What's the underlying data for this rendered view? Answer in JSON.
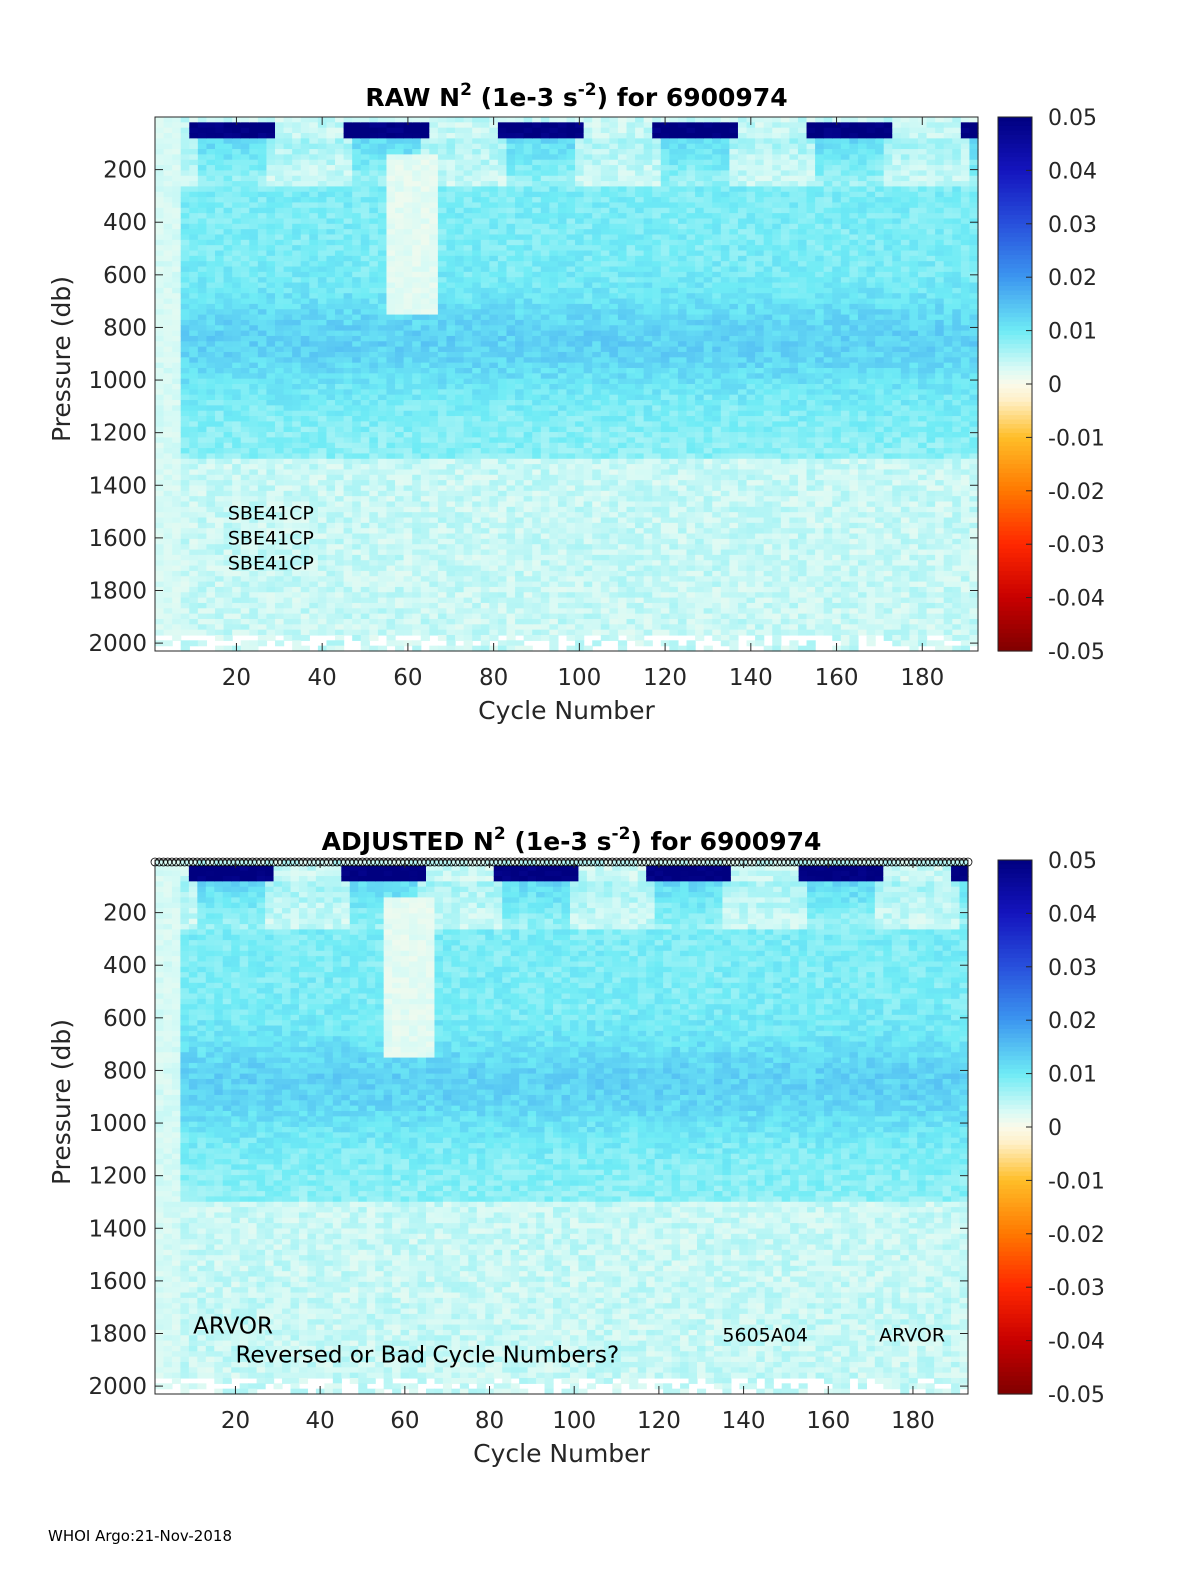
{
  "footer": "WHOI Argo:21-Nov-2018",
  "chart_data": [
    {
      "type": "heatmap",
      "title_main": "RAW N",
      "title_sup": "2",
      "title_unit_pre": " (1e-3 s",
      "title_unit_sup": "-2",
      "title_post": ") for 6900974",
      "xlabel": "Cycle Number",
      "ylabel": "Pressure (db)",
      "xlim": [
        1,
        193
      ],
      "ylim": [
        0,
        2030
      ],
      "xticks": [
        20,
        40,
        60,
        80,
        100,
        120,
        140,
        160,
        180
      ],
      "yticks": [
        200,
        400,
        600,
        800,
        1000,
        1200,
        1400,
        1600,
        1800,
        2000
      ],
      "colorbar": {
        "range": [
          -0.05,
          0.05
        ],
        "ticks": [
          "0.05",
          "0.04",
          "0.03",
          "0.02",
          "0.01",
          "0",
          "-0.01",
          "-0.02",
          "-0.03",
          "-0.04",
          "-0.05"
        ]
      },
      "annotations": [
        {
          "text": "SBE41CP",
          "x": 18,
          "y": 1530
        },
        {
          "text": "SBE41CP",
          "x": 18,
          "y": 1625
        },
        {
          "text": "SBE41CP",
          "x": 18,
          "y": 1720
        }
      ],
      "flag_markers": false
    },
    {
      "type": "heatmap",
      "title_main": "ADJUSTED N",
      "title_sup": "2",
      "title_unit_pre": " (1e-3 s",
      "title_unit_sup": "-2",
      "title_post": ") for 6900974",
      "xlabel": "Cycle Number",
      "ylabel": "Pressure (db)",
      "xlim": [
        1,
        193
      ],
      "ylim": [
        0,
        2030
      ],
      "xticks": [
        20,
        40,
        60,
        80,
        100,
        120,
        140,
        160,
        180
      ],
      "yticks": [
        200,
        400,
        600,
        800,
        1000,
        1200,
        1400,
        1600,
        1800,
        2000
      ],
      "colorbar": {
        "range": [
          -0.05,
          0.05
        ],
        "ticks": [
          "0.05",
          "0.04",
          "0.03",
          "0.02",
          "0.01",
          "0",
          "-0.01",
          "-0.02",
          "-0.03",
          "-0.04",
          "-0.05"
        ]
      },
      "annotations": [
        {
          "text": "ARVOR",
          "x": 10,
          "y": 1800,
          "big": true
        },
        {
          "text": "Reversed or Bad Cycle Numbers?",
          "x": 20,
          "y": 1910,
          "big": true
        },
        {
          "text": "5605A04",
          "x": 135,
          "y": 1830
        },
        {
          "text": "ARVOR",
          "x": 172,
          "y": 1830
        }
      ],
      "flag_markers": true
    }
  ]
}
